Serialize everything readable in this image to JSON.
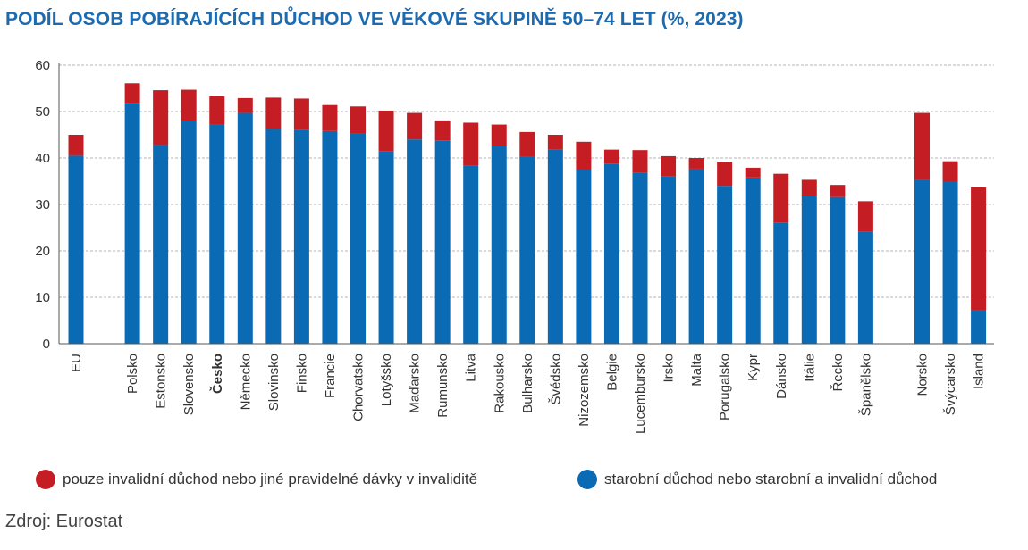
{
  "title": "PODÍL OSOB POBÍRAJÍCÍCH DŮCHOD VE VĚKOVÉ SKUPINĚ 50–74 LET (%, 2023)",
  "source": "Zdroj: Eurostat",
  "legend": {
    "invalid_label": "pouze invalidní důchod nebo jiné pravidelné dávky v invaliditě",
    "old_age_label": "starobní důchod nebo starobní a invalidní důchod"
  },
  "colors": {
    "old_age": "#0b6ab4",
    "invalid": "#c41e24",
    "grid": "#b5b5b5",
    "axis": "#555555"
  },
  "chart_data": {
    "type": "bar",
    "stacked": true,
    "ylim": [
      0,
      60
    ],
    "yticks": [
      0,
      10,
      20,
      30,
      40,
      50,
      60
    ],
    "grid": true,
    "legend_position": "bottom",
    "highlight_category": "Česko",
    "categories": [
      "EU",
      "Polsko",
      "Estonsko",
      "Slovensko",
      "Česko",
      "Německo",
      "Slovinsko",
      "Finsko",
      "Francie",
      "Chorvatsko",
      "Lotyšsko",
      "Maďarsko",
      "Rumunsko",
      "Litva",
      "Rakousko",
      "Bulharsko",
      "Švédsko",
      "Nizozemsko",
      "Belgie",
      "Lucembursko",
      "Irsko",
      "Malta",
      "Porugalsko",
      "Kypr",
      "Dánsko",
      "Itálie",
      "Řecko",
      "Španělsko",
      "Norsko",
      "Švýcarsko",
      "Island"
    ],
    "groups_break_after": [
      "EU",
      "Španělsko"
    ],
    "series": [
      {
        "name": "starobní důchod nebo starobní a invalidní důchod",
        "color_key": "old_age",
        "values": [
          40.5,
          51.8,
          42.8,
          48.0,
          47.3,
          49.7,
          46.3,
          46.0,
          45.8,
          45.3,
          41.4,
          44.0,
          43.8,
          38.3,
          42.5,
          40.3,
          41.8,
          37.5,
          38.8,
          36.9,
          36.0,
          37.7,
          34.0,
          35.8,
          26.1,
          31.9,
          31.6,
          24.1,
          35.3,
          35.0,
          7.3
        ]
      },
      {
        "name": "pouze invalidní důchod nebo jiné pravidelné dávky v invaliditě",
        "color_key": "invalid",
        "values": [
          4.5,
          4.3,
          11.8,
          6.7,
          6.0,
          3.2,
          6.7,
          6.8,
          5.6,
          5.8,
          8.8,
          5.7,
          4.3,
          9.3,
          4.7,
          5.3,
          3.2,
          6.0,
          3.0,
          4.8,
          4.4,
          2.3,
          5.2,
          2.1,
          10.5,
          3.4,
          2.6,
          6.6,
          14.4,
          4.3,
          26.4
        ]
      }
    ]
  }
}
